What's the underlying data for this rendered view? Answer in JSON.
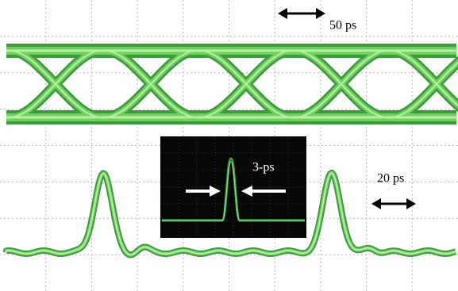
{
  "labels": {
    "top_scale": "50 ps",
    "inset_width": "3-ps",
    "bottom_scale": "20 ps"
  }
}
